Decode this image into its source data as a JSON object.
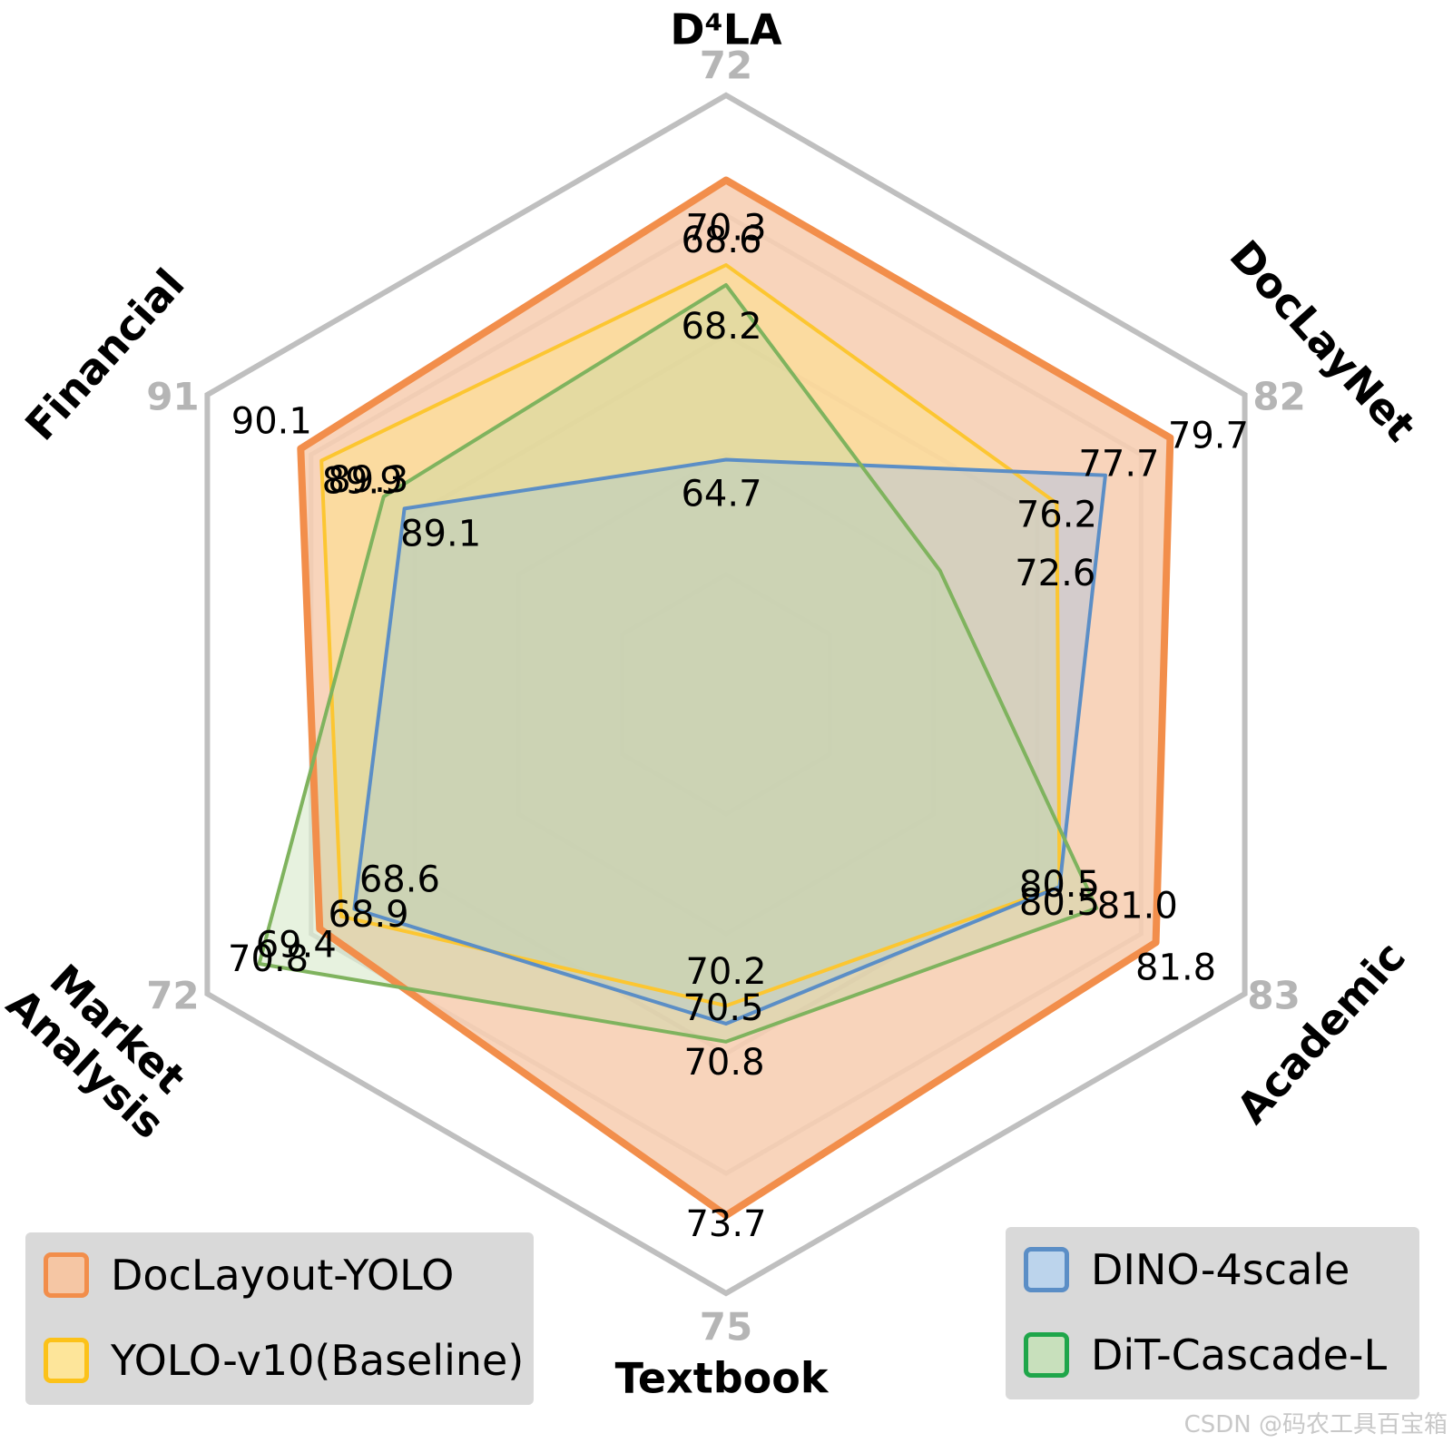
{
  "chart_data": {
    "type": "radar",
    "axes": [
      {
        "name": "D⁴LA",
        "max_label": "72",
        "lines": [
          "D⁴LA"
        ]
      },
      {
        "name": "DocLayNet",
        "max_label": "82",
        "lines": [
          "DocLayNet"
        ]
      },
      {
        "name": "Academic",
        "max_label": "83",
        "lines": [
          "Academic"
        ]
      },
      {
        "name": "Textbook",
        "max_label": "75",
        "lines": [
          "Textbook"
        ]
      },
      {
        "name": "Market Analysis",
        "max_label": "72",
        "lines": [
          "Market",
          "Analysis"
        ]
      },
      {
        "name": "Financial",
        "max_label": "91",
        "lines": [
          "Financial"
        ]
      }
    ],
    "series": [
      {
        "name": "DocLayout-YOLO",
        "color": "#f28e4b",
        "fill": "#f5c6a4",
        "values": [
          70.3,
          79.7,
          81.8,
          73.7,
          69.4,
          90.1
        ],
        "labels": [
          "70.3",
          "79.7",
          "81.8",
          "73.7",
          "69.4",
          "90.1"
        ]
      },
      {
        "name": "YOLO-v10(Baseline)",
        "color": "#fcc631",
        "fill": "#fde08a",
        "values": [
          68.6,
          76.2,
          80.5,
          70.2,
          68.9,
          89.9
        ],
        "labels": [
          "68.6",
          "76.2",
          "80.5",
          "70.2",
          "68.9",
          "89.9"
        ]
      },
      {
        "name": "DINO-4scale",
        "color": "#5b8ec6",
        "fill": "#a8c4e2",
        "values": [
          64.7,
          77.7,
          80.5,
          70.5,
          68.6,
          89.1
        ],
        "labels": [
          "64.7",
          "77.7",
          "80.5",
          "70.5",
          "68.6",
          "89.1"
        ]
      },
      {
        "name": "DiT-Cascade-L",
        "color": "#7fb35e",
        "fill": "#b9d9a4",
        "values": [
          68.2,
          72.6,
          81.0,
          70.8,
          70.8,
          89.3
        ],
        "labels": [
          "68.2",
          "72.6",
          "81.0",
          "70.8",
          "70.8",
          "89.3"
        ]
      }
    ],
    "grid": true,
    "legend": [
      {
        "position": "bottom-left",
        "items": [
          "DocLayout-YOLO",
          "YOLO-v10(Baseline)"
        ]
      },
      {
        "position": "bottom-right",
        "items": [
          "DINO-4scale",
          "DiT-Cascade-L"
        ]
      }
    ]
  },
  "legend_left": {
    "items": [
      {
        "label": "DocLayout-YOLO",
        "fill": "#f5c6a4",
        "border": "#f28e4b"
      },
      {
        "label": "YOLO-v10(Baseline)",
        "fill": "#fde59a",
        "border": "#fcc219"
      }
    ]
  },
  "legend_right": {
    "items": [
      {
        "label": "DINO-4scale",
        "fill": "#bcd4ec",
        "border": "#5b8ec6"
      },
      {
        "label": "DiT-Cascade-L",
        "fill": "#c8e0bc",
        "border": "#1fa64a"
      }
    ]
  },
  "watermark": "CSDN @码农工具百宝箱"
}
